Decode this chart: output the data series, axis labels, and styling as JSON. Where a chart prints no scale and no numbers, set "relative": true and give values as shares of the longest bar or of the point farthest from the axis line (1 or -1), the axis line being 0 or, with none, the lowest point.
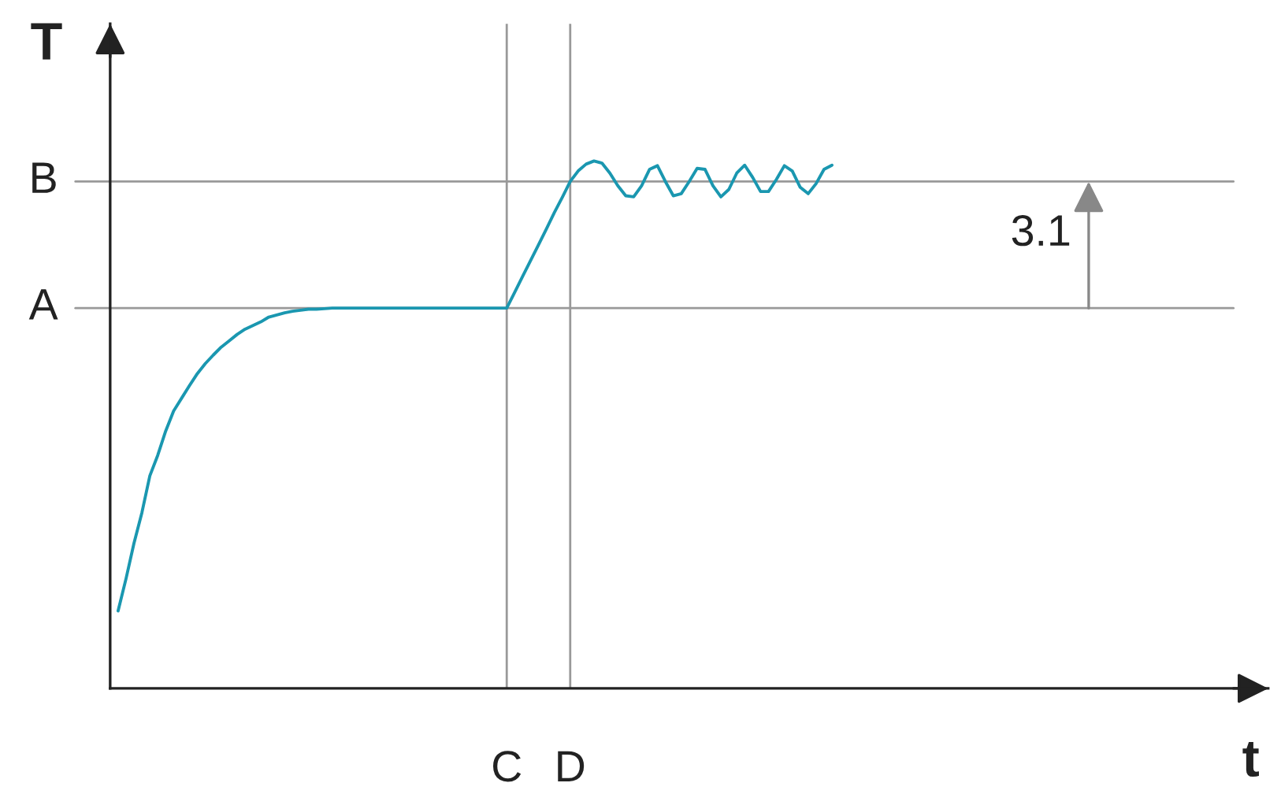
{
  "chart_data": {
    "type": "line",
    "xlabel": "t",
    "ylabel": "T",
    "relative": true,
    "categories": [
      null,
      null,
      null,
      null,
      null,
      null,
      null,
      null,
      null,
      null,
      null,
      null,
      null,
      null,
      null,
      null,
      null,
      null,
      null,
      null,
      null,
      null,
      null,
      null,
      null,
      null,
      null,
      null,
      null,
      null,
      null,
      null,
      null,
      null,
      null,
      null,
      null,
      null,
      null,
      null,
      null,
      null,
      null,
      null,
      null,
      null,
      null,
      null,
      null,
      "C",
      null,
      null,
      null,
      null,
      null,
      null,
      null,
      "D",
      null,
      null,
      null,
      null,
      null,
      null,
      null,
      null,
      null,
      null,
      null,
      null,
      null,
      null,
      null,
      null,
      null,
      null,
      null,
      null,
      null,
      null,
      null,
      null,
      null,
      null,
      null,
      null,
      null,
      null,
      null,
      null,
      null,
      null,
      null,
      null,
      null,
      null,
      null,
      null,
      null,
      null,
      null,
      null,
      null,
      null,
      null,
      null,
      null,
      null,
      null,
      null,
      null,
      null,
      null,
      null,
      null,
      null,
      null,
      null,
      null,
      null,
      null,
      null,
      null,
      null,
      null,
      null,
      null,
      null,
      null,
      null,
      null,
      null,
      null,
      null,
      null,
      null,
      null,
      null,
      null,
      null,
      null,
      null,
      null,
      null,
      null,
      null
    ],
    "series": [
      {
        "color": "#1a97b0",
        "values": [
          0.147,
          0.208,
          0.275,
          0.333,
          0.403,
          0.442,
          0.488,
          0.526,
          0.55,
          0.574,
          0.597,
          0.616,
          0.632,
          0.647,
          0.659,
          0.671,
          0.681,
          0.688,
          0.695,
          0.704,
          0.708,
          0.712,
          0.715,
          0.717,
          0.719,
          0.719,
          0.72,
          0.721,
          0.721,
          0.721,
          0.721,
          0.721,
          0.721,
          0.721,
          0.721,
          0.721,
          0.721,
          0.721,
          0.721,
          0.721,
          0.721,
          0.721,
          0.721,
          0.721,
          0.721,
          0.721,
          0.721,
          0.721,
          0.721,
          0.721,
          0.751,
          0.781,
          0.811,
          0.841,
          0.871,
          0.902,
          0.931,
          0.961,
          0.981,
          0.994,
          1,
          0.996,
          0.977,
          0.953,
          0.934,
          0.932,
          0.953,
          0.984,
          0.991,
          0.961,
          0.934,
          0.938,
          0.961,
          0.986,
          0.984,
          0.953,
          0.932,
          0.946,
          0.977,
          0.992,
          0.969,
          0.942,
          0.942,
          0.965,
          0.991,
          0.981,
          0.95,
          0.938,
          0.957,
          0.984,
          0.992,
          null,
          null,
          null,
          null,
          null,
          null,
          null,
          null,
          null,
          null,
          null,
          null,
          null,
          null,
          null,
          null,
          null,
          null,
          null,
          null,
          null,
          null,
          null,
          null,
          null,
          null,
          null,
          null,
          null,
          null,
          null,
          null,
          null,
          null,
          null,
          null,
          null,
          null,
          null,
          null,
          null,
          null,
          null,
          null,
          null,
          null,
          null,
          null,
          null,
          null,
          null,
          null,
          null,
          null,
          null
        ]
      }
    ],
    "ref_lines": [
      {
        "axis": "y",
        "value": 0.721,
        "label": "A",
        "color": "#999999"
      },
      {
        "axis": "y",
        "value": 0.961,
        "label": "B",
        "color": "#999999"
      }
    ],
    "grid": "x",
    "marker": "none",
    "line_style": "solid",
    "annotations": [
      "3.1"
    ]
  }
}
